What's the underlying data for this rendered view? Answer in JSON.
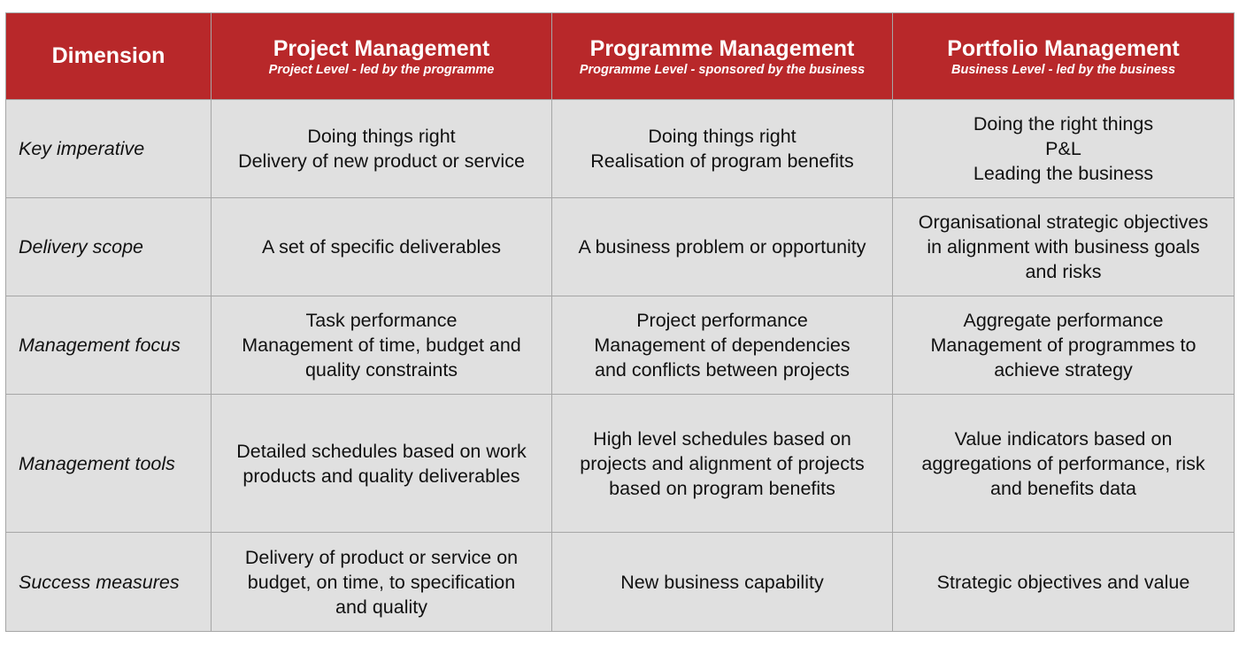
{
  "table": {
    "header": {
      "dimension": "Dimension",
      "columns": [
        {
          "title": "Project Management",
          "subtitle": "Project Level - led by the programme"
        },
        {
          "title": "Programme Management",
          "subtitle": "Programme Level - sponsored by the business"
        },
        {
          "title": "Portfolio Management",
          "subtitle": "Business Level - led by the business"
        }
      ]
    },
    "rows": [
      {
        "dimension": "Key imperative",
        "cells": [
          [
            "Doing things right",
            "Delivery of new product or service"
          ],
          [
            "Doing things right",
            "Realisation of program benefits"
          ],
          [
            "Doing the right things",
            "P&L",
            "Leading the business"
          ]
        ]
      },
      {
        "dimension": "Delivery scope",
        "cells": [
          [
            "A set of specific deliverables"
          ],
          [
            "A business problem or opportunity"
          ],
          [
            "Organisational strategic objectives",
            "in alignment with business goals",
            "and risks"
          ]
        ]
      },
      {
        "dimension": "Management focus",
        "cells": [
          [
            "Task performance",
            "Management of time, budget and",
            "quality constraints"
          ],
          [
            "Project performance",
            "Management of dependencies",
            "and conflicts between projects"
          ],
          [
            "Aggregate performance",
            "Management of programmes to",
            "achieve strategy"
          ]
        ]
      },
      {
        "dimension": "Management tools",
        "cells": [
          [
            "Detailed schedules based on work",
            "products and quality deliverables"
          ],
          [
            "High level schedules based on",
            "projects and alignment of projects",
            "based on program benefits"
          ],
          [
            "Value indicators based on",
            "aggregations of performance, risk",
            "and benefits data"
          ]
        ]
      },
      {
        "dimension": "Success measures",
        "cells": [
          [
            "Delivery of product or service on",
            "budget, on time, to specification",
            "and quality"
          ],
          [
            "New business capability"
          ],
          [
            "Strategic objectives and value"
          ]
        ]
      }
    ]
  }
}
